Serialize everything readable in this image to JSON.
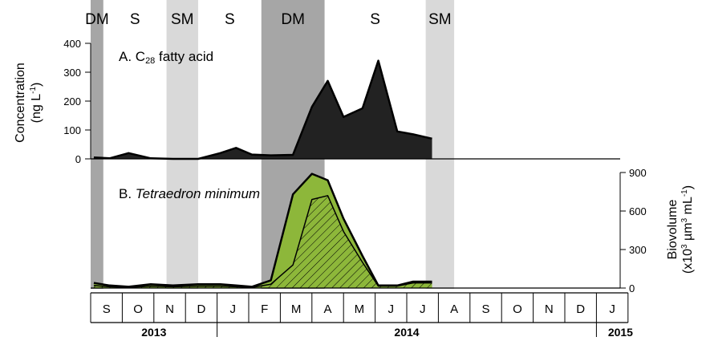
{
  "chart_data": [
    {
      "type": "area",
      "panel": "A",
      "title_prefix": "A. C",
      "title_sub": "28",
      "title_suffix": " fatty acid",
      "ylabel_line1": "Concentration",
      "ylabel_line2": "(ng L",
      "ylabel_sup": "-1",
      "ylabel_close": ")",
      "ylim": [
        0,
        400
      ],
      "yticks": [
        0,
        100,
        200,
        300,
        400
      ],
      "x": [
        0.1,
        0.6,
        1.2,
        1.9,
        2.6,
        3.4,
        4.1,
        4.6,
        5.1,
        5.7,
        6.4,
        7.0,
        7.5,
        8.0,
        8.6,
        9.1,
        9.7,
        10.2,
        10.8
      ],
      "series": [
        {
          "values": [
            5,
            2,
            20,
            2,
            0,
            0,
            20,
            38,
            15,
            12,
            14,
            180,
            270,
            145,
            175,
            340,
            95,
            85,
            70
          ],
          "color": "#222222"
        }
      ]
    },
    {
      "type": "area",
      "panel": "B",
      "title_prefix": "B. ",
      "title_italic": "Tetraedron minimum",
      "ylabel_line1": "Biovolume",
      "ylabel_line2_pre": "(x10",
      "ylabel_sup1": "3",
      "ylabel_line2_mid": " µm",
      "ylabel_sup2": "3",
      "ylabel_line2_post": " mL",
      "ylabel_sup3": "-1",
      "ylabel_close": ")",
      "ylim": [
        0,
        900
      ],
      "yticks": [
        0,
        300,
        600,
        900
      ],
      "x": [
        0.1,
        0.6,
        1.2,
        1.9,
        2.6,
        3.4,
        4.1,
        4.6,
        5.1,
        5.7,
        6.4,
        7.0,
        7.5,
        8.0,
        8.6,
        9.1,
        9.7,
        10.2,
        10.8
      ],
      "series": [
        {
          "name_key": "total",
          "values": [
            40,
            20,
            10,
            30,
            20,
            30,
            30,
            20,
            10,
            60,
            730,
            890,
            840,
            540,
            250,
            20,
            20,
            50,
            50
          ],
          "color": "#8db73a"
        },
        {
          "name_key": "hatched",
          "values": [
            20,
            10,
            5,
            15,
            10,
            15,
            15,
            10,
            5,
            30,
            180,
            690,
            720,
            440,
            200,
            15,
            15,
            40,
            40
          ],
          "color": "#8db73a"
        }
      ]
    }
  ],
  "seasons": [
    {
      "label": "DM",
      "start": 0,
      "end": 0.4,
      "shade": "#a6a6a6"
    },
    {
      "label": "S",
      "start": 0.4,
      "end": 2.4,
      "shade": "none"
    },
    {
      "label": "SM",
      "start": 2.4,
      "end": 3.4,
      "shade": "#d9d9d9"
    },
    {
      "label": "S",
      "start": 3.4,
      "end": 5.4,
      "shade": "none"
    },
    {
      "label": "DM",
      "start": 5.4,
      "end": 7.4,
      "shade": "#a6a6a6"
    },
    {
      "label": "S",
      "start": 7.4,
      "end": 10.6,
      "shade": "none"
    },
    {
      "label": "SM",
      "start": 10.6,
      "end": 11.5,
      "shade": "#d9d9d9"
    }
  ],
  "months": [
    "S",
    "O",
    "N",
    "D",
    "J",
    "F",
    "M",
    "A",
    "M",
    "J",
    "J",
    "A",
    "S",
    "O",
    "N",
    "D",
    "J"
  ],
  "years": [
    {
      "label": "2013",
      "start": 0,
      "end": 4
    },
    {
      "label": "2014",
      "start": 4,
      "end": 16
    },
    {
      "label": "2015",
      "start": 16,
      "end": 17
    }
  ]
}
